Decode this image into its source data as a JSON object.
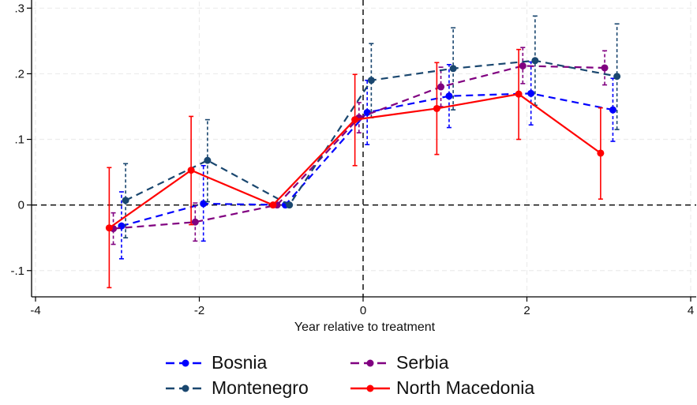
{
  "chart_data": {
    "type": "line",
    "xlabel": "Year relative to treatment",
    "ylabel": "",
    "xlim": [
      -4,
      4
    ],
    "ylim": [
      -0.14,
      0.31
    ],
    "x_ticks": [
      -4,
      -2,
      0,
      2,
      4
    ],
    "x_tick_labels": [
      "-4",
      "-2",
      "0",
      "2",
      "4"
    ],
    "y_ticks": [
      -0.1,
      0,
      0.1,
      0.2,
      0.3
    ],
    "y_tick_labels": [
      "-.1",
      "0",
      ".1",
      ".2",
      ".3"
    ],
    "grid": true,
    "reference_lines": {
      "x": 0,
      "y": 0
    },
    "legend_position": "bottom",
    "series": [
      {
        "name": "Bosnia",
        "color": "#0000ff",
        "dash": "dashed",
        "x": [
          -2.95,
          -1.95,
          -0.95,
          0.05,
          1.05,
          2.05,
          3.05
        ],
        "y": [
          -0.032,
          0.002,
          0.0,
          0.141,
          0.166,
          0.17,
          0.145
        ],
        "ci_low": [
          -0.082,
          -0.055,
          0.0,
          0.092,
          0.118,
          0.122,
          0.097
        ],
        "ci_high": [
          0.02,
          0.06,
          0.0,
          0.19,
          0.214,
          0.218,
          0.193
        ]
      },
      {
        "name": "Serbia",
        "color": "#800080",
        "dash": "dashed",
        "x": [
          -3.05,
          -2.05,
          -1.05,
          -0.05,
          0.95,
          1.95,
          2.95
        ],
        "y": [
          -0.036,
          -0.026,
          0.0,
          0.133,
          0.18,
          0.212,
          0.209
        ],
        "ci_low": [
          -0.06,
          -0.055,
          0.0,
          0.11,
          0.15,
          0.185,
          0.183
        ],
        "ci_high": [
          -0.012,
          0.003,
          0.0,
          0.156,
          0.21,
          0.24,
          0.235
        ]
      },
      {
        "name": "Montenegro",
        "color": "#1a476f",
        "dash": "dashed",
        "x": [
          -2.9,
          -1.9,
          -0.9,
          0.1,
          1.1,
          2.1,
          3.1
        ],
        "y": [
          0.007,
          0.068,
          0.0,
          0.19,
          0.208,
          0.22,
          0.196
        ],
        "ci_low": [
          -0.05,
          0.005,
          0.0,
          0.133,
          0.145,
          0.152,
          0.115
        ],
        "ci_high": [
          0.063,
          0.13,
          0.0,
          0.246,
          0.27,
          0.288,
          0.276
        ]
      },
      {
        "name": "North Macedonia",
        "color": "#ff0000",
        "dash": "solid",
        "x": [
          -3.1,
          -2.1,
          -1.1,
          -0.1,
          0.9,
          1.9,
          2.9
        ],
        "y": [
          -0.035,
          0.053,
          0.0,
          0.13,
          0.147,
          0.169,
          0.079
        ],
        "ci_low": [
          -0.126,
          -0.03,
          0.0,
          0.06,
          0.077,
          0.1,
          0.009
        ],
        "ci_high": [
          0.057,
          0.135,
          0.0,
          0.199,
          0.217,
          0.237,
          0.148
        ]
      }
    ],
    "legend": [
      {
        "name": "Bosnia",
        "series": 0
      },
      {
        "name": "Serbia",
        "series": 1
      },
      {
        "name": "Montenegro",
        "series": 2
      },
      {
        "name": "North Macedonia",
        "series": 3
      }
    ]
  }
}
